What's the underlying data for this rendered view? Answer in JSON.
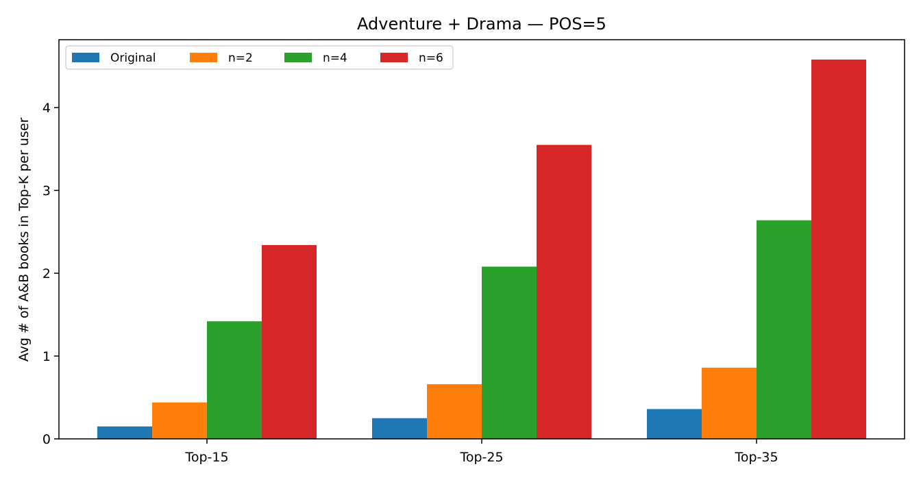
{
  "chart_data": {
    "type": "bar",
    "title": "Adventure + Drama — POS=5",
    "xlabel": "",
    "ylabel": "Avg # of A&B books in Top-K per user",
    "categories": [
      "Top-15",
      "Top-25",
      "Top-35"
    ],
    "ylim": [
      0,
      4.82
    ],
    "yticks": [
      0,
      1,
      2,
      3,
      4
    ],
    "grid": false,
    "legend_position": "top-left",
    "legend_columns": 4,
    "series": [
      {
        "name": "Original",
        "color": "#1f77b4",
        "values": [
          0.15,
          0.25,
          0.36
        ]
      },
      {
        "name": "n=2",
        "color": "#ff7f0e",
        "values": [
          0.44,
          0.66,
          0.86
        ]
      },
      {
        "name": "n=4",
        "color": "#2ca02c",
        "values": [
          1.42,
          2.08,
          2.64
        ]
      },
      {
        "name": "n=6",
        "color": "#d62728",
        "values": [
          2.34,
          3.55,
          4.58
        ]
      }
    ]
  }
}
